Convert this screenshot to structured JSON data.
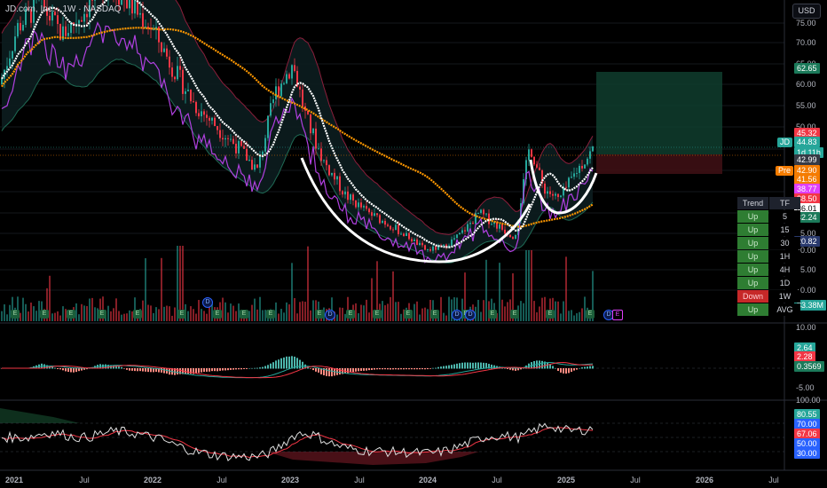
{
  "header": {
    "symbol_title": "JD.com, Inc. · 1W · NASDAQ",
    "currency_button": "USD"
  },
  "price_axis": {
    "ticks": [
      "75.00",
      "70.00",
      "65.00",
      "60.00",
      "55.00",
      "50.00",
      "45.00",
      "40.00",
      "35.00",
      "30.00",
      "25.00",
      "20.00",
      "15.00",
      "10.00"
    ],
    "badges": [
      {
        "label": "",
        "value": "62.65",
        "color": "#1b7a5a"
      },
      {
        "label": "",
        "value": "45.32",
        "color": "#f23645"
      },
      {
        "label": "JD",
        "value": "44.83",
        "sub": "1d 11h",
        "color": "#26a69a"
      },
      {
        "label": "",
        "value": "42.99",
        "color": "#363a45"
      },
      {
        "label": "Pre",
        "value": "42.90",
        "color": "#f57c00"
      },
      {
        "label": "",
        "value": "41.56",
        "color": "#f57c00"
      },
      {
        "label": "",
        "value": "38.77",
        "color": "#e040fb"
      },
      {
        "label": "",
        "value": "38.50",
        "color": "#f23645"
      },
      {
        "label": "",
        "value": "36.01",
        "color": "#ffffff"
      },
      {
        "label": "",
        "value": "32.24",
        "color": "#1b7a5a"
      },
      {
        "label": "Low",
        "value": "20.82",
        "color": "#2a3a6e"
      },
      {
        "label": "",
        "value": "33.38M",
        "color": "#26a69a"
      }
    ]
  },
  "trend_table": {
    "headers": [
      "Trend",
      "TF"
    ],
    "rows": [
      {
        "state": "Up",
        "tf": "5"
      },
      {
        "state": "Up",
        "tf": "15"
      },
      {
        "state": "Up",
        "tf": "30"
      },
      {
        "state": "Up",
        "tf": "1H"
      },
      {
        "state": "Up",
        "tf": "4H"
      },
      {
        "state": "Up",
        "tf": "1D"
      },
      {
        "state": "Down",
        "tf": "1W"
      },
      {
        "state": "Up",
        "tf": "AVG"
      }
    ]
  },
  "macd_pane": {
    "ticks": [
      "10.00",
      "-5.00"
    ],
    "badges": [
      {
        "value": "2.64",
        "color": "#26a69a"
      },
      {
        "value": "2.28",
        "color": "#f23645"
      },
      {
        "value": "0.3569",
        "color": "#1b7a5a"
      }
    ]
  },
  "rsi_pane": {
    "ticks": [
      "100.00"
    ],
    "badges": [
      {
        "value": "80.55",
        "color": "#26a69a"
      },
      {
        "value": "70.00",
        "color": "#2962ff"
      },
      {
        "value": "67.06",
        "color": "#f23645"
      },
      {
        "value": "50.00",
        "color": "#2962ff"
      },
      {
        "value": "30.00",
        "color": "#2962ff"
      }
    ]
  },
  "time_axis": [
    "2021",
    "Jul",
    "2022",
    "Jul",
    "2023",
    "Jul",
    "2024",
    "Jul",
    "2025",
    "Jul",
    "2026",
    "Jul"
  ],
  "events": {
    "earnings_letter": "E",
    "dividend_letter": "D"
  },
  "colors": {
    "up": "#26a69a",
    "down": "#f23645",
    "ma_orange": "#ff9800",
    "ma_white": "#ffffff",
    "channel_purple": "#b040e0",
    "bollinger": "#8a1e3a",
    "position_green": "#0f3d2e",
    "position_red": "#3d1014"
  }
}
